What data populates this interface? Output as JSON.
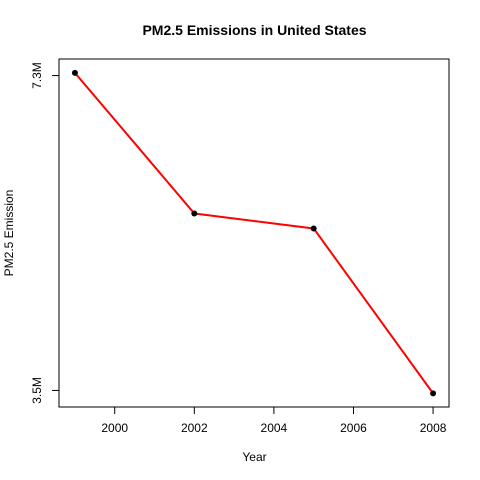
{
  "chart_data": {
    "type": "line",
    "title": "PM2.5 Emissions in United States",
    "xlabel": "Year",
    "ylabel": "PM2.5 Emission",
    "x": [
      1999,
      2002,
      2005,
      2008
    ],
    "series": [
      {
        "values": [
          7332967,
          5635780,
          5454703,
          3464206
        ],
        "color": "#ff0000"
      }
    ],
    "xlim": [
      1998.6,
      2008.4
    ],
    "ylim": [
      3300000,
      7500000
    ],
    "x_ticks": [
      2000,
      2002,
      2004,
      2006,
      2008
    ],
    "x_tick_labels": [
      "2000",
      "2002",
      "2004",
      "2006",
      "2008"
    ],
    "y_ticks": [
      3500000,
      7300000
    ],
    "y_tick_labels": [
      "3.5M",
      "7.3M"
    ],
    "point_color": "#000000",
    "grid": false,
    "legend": "none"
  }
}
